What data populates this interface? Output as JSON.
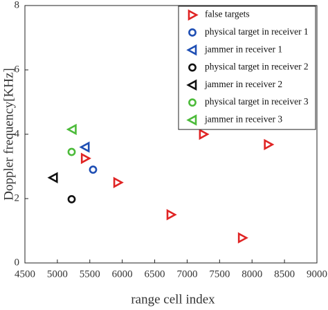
{
  "chart_data": {
    "type": "scatter",
    "x_label": "range cell index",
    "y_label": "Doppler frequency[KHz]",
    "xlim": [
      4500,
      9000
    ],
    "ylim": [
      0,
      8
    ],
    "xticks": [
      4500,
      5000,
      5500,
      6000,
      6500,
      7000,
      7500,
      8000,
      8500,
      9000
    ],
    "yticks": [
      0,
      2,
      4,
      6,
      8
    ],
    "grid": false,
    "legend": "upper right",
    "series": [
      {
        "name": "false targets",
        "color": "#e02424",
        "marker": "triangle-right",
        "x": [
          5430,
          5930,
          6750,
          7250,
          7850,
          8250
        ],
        "values": [
          3.25,
          2.5,
          1.5,
          4.0,
          0.78,
          3.68
        ]
      },
      {
        "name": "physical target in receiver 1",
        "color": "#1f4fb4",
        "marker": "circle",
        "x": [
          5550
        ],
        "values": [
          2.9
        ]
      },
      {
        "name": "jammer in receiver 1",
        "color": "#1f4fb4",
        "marker": "triangle-left",
        "x": [
          5430
        ],
        "values": [
          3.6
        ]
      },
      {
        "name": "physical target in receiver 2",
        "color": "#111111",
        "marker": "circle",
        "x": [
          5220
        ],
        "values": [
          1.98
        ]
      },
      {
        "name": "jammer in receiver 2",
        "color": "#111111",
        "marker": "triangle-left",
        "x": [
          4940
        ],
        "values": [
          2.65
        ]
      },
      {
        "name": "physical target in receiver 3",
        "color": "#4cbb3a",
        "marker": "circle",
        "x": [
          5220
        ],
        "values": [
          3.45
        ]
      },
      {
        "name": "jammer in receiver 3",
        "color": "#4cbb3a",
        "marker": "triangle-left",
        "x": [
          5230
        ],
        "values": [
          4.15
        ]
      }
    ]
  }
}
